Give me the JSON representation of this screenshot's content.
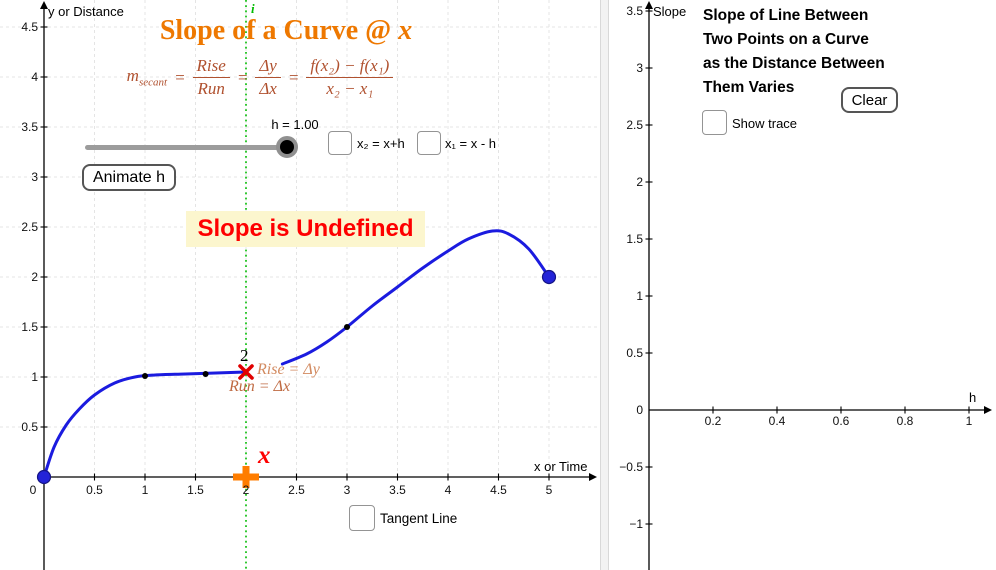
{
  "left_panel": {
    "axis_label_y": "y or Distance",
    "axis_label_x": "x or Time",
    "title": {
      "text": "Slope of a Curve @ ",
      "var": "x"
    },
    "formula": {
      "m": "m",
      "m_sub": "secant",
      "eq": "=",
      "f1t": "Rise",
      "f1b": "Run",
      "f2t": "Δy",
      "f2b": "Δx",
      "f3t": "f(x₂) − f(x₁)",
      "f3b": "x₂ − x₁"
    },
    "slider": {
      "label": "h = 1.00",
      "value": "1.00"
    },
    "animate_button": "Animate h",
    "checkbox_x2_label": "x₂ = x+h",
    "checkbox_x1_label": "x₁ = x - h",
    "status_message": "Slope is Undefined",
    "point_label_2": "2",
    "rise_label": "Rise = Δy",
    "run_label": "Run = Δx",
    "x_marker_label": "x",
    "guide_line_label": "i",
    "tangent_checkbox_label": "Tangent Line"
  },
  "right_panel": {
    "axis_label_y": "Slope",
    "axis_label_x": "h",
    "title_lines": [
      "Slope of Line Between",
      "Two Points on a Curve",
      "as the Distance Between",
      "Them Varies"
    ],
    "clear_button": "Clear",
    "show_trace_label": "Show trace"
  },
  "colors": {
    "title_orange": "#ee7800",
    "formula_brown": "#b0512f",
    "curve_blue": "#1b1bdf",
    "status_red": "#fe0000",
    "status_bg": "#fcf6ce",
    "guide_green": "#00bb00",
    "marker_orange": "#ff7d00"
  },
  "chart_data": [
    {
      "type": "line",
      "panel": "left",
      "xlabel": "x or Time",
      "ylabel": "y or Distance",
      "xlim": [
        -0.45,
        5.5
      ],
      "ylim": [
        -0.93,
        4.77
      ],
      "grid": true,
      "x_ticks": [
        0,
        0.5,
        1,
        1.5,
        2,
        2.5,
        3,
        3.5,
        4,
        4.5,
        5
      ],
      "y_ticks": [
        0.5,
        1,
        1.5,
        2,
        2.5,
        3,
        3.5,
        4,
        4.5
      ],
      "series": [
        {
          "name": "curve-left-branch",
          "color": "#1b1bdf",
          "points": [
            [
              0,
              0
            ],
            [
              0.1,
              0.3
            ],
            [
              0.22,
              0.52
            ],
            [
              0.35,
              0.68
            ],
            [
              0.5,
              0.82
            ],
            [
              0.7,
              0.94
            ],
            [
              0.9,
              1.0
            ],
            [
              1.1,
              1.02
            ],
            [
              1.4,
              1.03
            ],
            [
              1.7,
              1.04
            ],
            [
              2,
              1.05
            ]
          ]
        },
        {
          "name": "curve-right-branch",
          "color": "#1b1bdf",
          "points": [
            [
              2.36,
              1.13
            ],
            [
              2.6,
              1.23
            ],
            [
              2.8,
              1.35
            ],
            [
              3,
              1.5
            ],
            [
              3.25,
              1.71
            ],
            [
              3.5,
              1.9
            ],
            [
              3.75,
              2.09
            ],
            [
              4,
              2.26
            ],
            [
              4.2,
              2.38
            ],
            [
              4.44,
              2.46
            ],
            [
              4.6,
              2.43
            ],
            [
              4.8,
              2.28
            ],
            [
              5,
              2
            ]
          ]
        }
      ],
      "point_markers": {
        "black": [
          [
            1,
            1.01
          ],
          [
            1.6,
            1.03
          ],
          [
            3,
            1.5
          ]
        ],
        "blue": [
          [
            0,
            0
          ],
          [
            5,
            2
          ]
        ],
        "red_x": [
          2,
          1.05
        ],
        "orange_cross": [
          2,
          0
        ],
        "green_vline_x": 2
      }
    },
    {
      "type": "scatter",
      "panel": "right",
      "xlabel": "h",
      "ylabel": "Slope",
      "xlim": [
        -0.12,
        1.08
      ],
      "ylim": [
        -1.4,
        3.6
      ],
      "grid": false,
      "x_ticks": [
        0.2,
        0.4,
        0.6,
        0.8,
        1
      ],
      "y_ticks": [
        -1,
        -0.5,
        0,
        0.5,
        1,
        1.5,
        2,
        2.5,
        3,
        3.5
      ],
      "series": []
    }
  ]
}
